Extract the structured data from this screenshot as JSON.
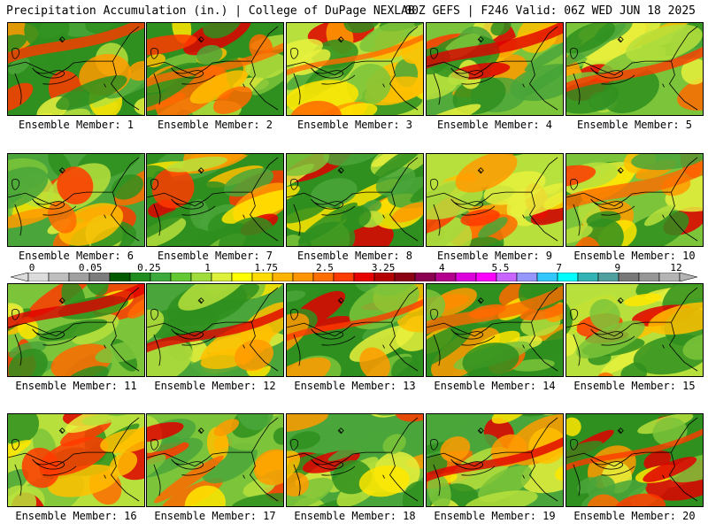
{
  "header": {
    "title": "Precipitation Accumulation (in.) | College of DuPage NEXLAB",
    "run_info": "00Z GEFS | F246 Valid: 06Z WED JUN 18 2025"
  },
  "legend": {
    "tick_labels": [
      "0",
      "0.05",
      "0.25",
      "1",
      "1.75",
      "2.5",
      "3.25",
      "4",
      "5.5",
      "7",
      "9",
      "12"
    ],
    "colors": [
      "#dcdcdc",
      "#bebebe",
      "#a0a0a0",
      "#7d7d7d",
      "#005a00",
      "#1e8c1e",
      "#3caa3c",
      "#64c832",
      "#a0dc3c",
      "#dcf03c",
      "#ffff00",
      "#ffdc00",
      "#ffb400",
      "#ff9600",
      "#ff6e00",
      "#ff3c00",
      "#e60000",
      "#b40000",
      "#8c0014",
      "#8c0050",
      "#b4008c",
      "#dc00dc",
      "#ff00ff",
      "#c864ff",
      "#9696ff",
      "#32c8ff",
      "#00ffff",
      "#32b4b4",
      "#50a0a0",
      "#787878",
      "#969696",
      "#b4b4b4"
    ]
  },
  "panels": [
    {
      "label": "Ensemble Member: 1"
    },
    {
      "label": "Ensemble Member: 2"
    },
    {
      "label": "Ensemble Member: 3"
    },
    {
      "label": "Ensemble Member: 4"
    },
    {
      "label": "Ensemble Member: 5"
    },
    {
      "label": "Ensemble Member: 6"
    },
    {
      "label": "Ensemble Member: 7"
    },
    {
      "label": "Ensemble Member: 8"
    },
    {
      "label": "Ensemble Member: 9"
    },
    {
      "label": "Ensemble Member: 10"
    },
    {
      "label": "Ensemble Member: 11"
    },
    {
      "label": "Ensemble Member: 12"
    },
    {
      "label": "Ensemble Member: 13"
    },
    {
      "label": "Ensemble Member: 14"
    },
    {
      "label": "Ensemble Member: 15"
    },
    {
      "label": "Ensemble Member: 16"
    },
    {
      "label": "Ensemble Member: 17"
    },
    {
      "label": "Ensemble Member: 18"
    },
    {
      "label": "Ensemble Member: 19"
    },
    {
      "label": "Ensemble Member: 20"
    }
  ]
}
